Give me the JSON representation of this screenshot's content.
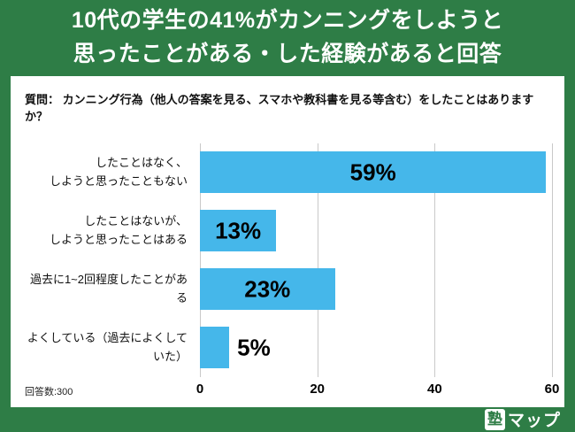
{
  "colors": {
    "green": "#2e7d46",
    "bar": "#45b7ea",
    "grid": "#c9c9c9"
  },
  "header": {
    "title_line1": "10代の学生の41%がカンニングをしようと",
    "title_line2": "思ったことがある・した経験があると回答"
  },
  "question": "質問： カンニング行為（他人の答案を見る、スマホや教科書を見る等含む）をしたことはありますか？",
  "respondents": "回答数:300",
  "logo": {
    "juku": "塾",
    "map": "マップ"
  },
  "chart_data": {
    "type": "bar",
    "orientation": "horizontal",
    "title": "",
    "categories": [
      "したことはなく、しようと思ったこともない",
      "したことはないが、しようと思ったことはある",
      "過去に1~2回程度したことがある",
      "よくしている（過去によくしていた）"
    ],
    "categories_lines": [
      [
        "したことはなく、",
        "しようと思ったこともない"
      ],
      [
        "したことはないが、",
        "しようと思ったことはある"
      ],
      [
        "過去に1~2回程度したことがある",
        ""
      ],
      [
        "よくしている（過去によくしていた）",
        ""
      ]
    ],
    "values": [
      59,
      13,
      23,
      5
    ],
    "value_labels": [
      "59%",
      "13%",
      "23%",
      "5%"
    ],
    "xlabel": "",
    "ylabel": "",
    "xlim": [
      0,
      60
    ],
    "xticks": [
      0,
      20,
      40,
      60
    ],
    "grid": true,
    "legend": false
  }
}
